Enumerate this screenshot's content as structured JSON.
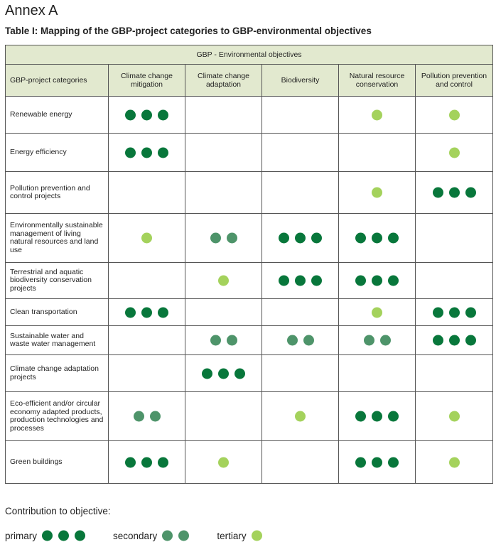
{
  "header": {
    "title": "Annex A",
    "subtitle": "Table I: Mapping of the GBP-project categories to GBP-environmental objectives"
  },
  "table": {
    "group_header": "GBP - Environmental objectives",
    "columns": [
      "GBP-project categories",
      "Climate change mitigation",
      "Climate change adaptation",
      "Biodiversity",
      "Natural resource conservation",
      "Pollution prevention and control"
    ],
    "rows": [
      {
        "category": "Renewable energy",
        "levels": [
          3,
          null,
          null,
          1,
          1
        ]
      },
      {
        "category": "Energy efficiency",
        "levels": [
          3,
          null,
          null,
          null,
          1
        ]
      },
      {
        "category": "Pollution prevention and control projects",
        "levels": [
          null,
          null,
          null,
          1,
          3
        ]
      },
      {
        "category": "Environmentally sustainable management of living natural resources and land use",
        "levels": [
          1,
          2,
          3,
          3,
          null
        ]
      },
      {
        "category": "Terrestrial and aquatic biodiversity conservation projects",
        "levels": [
          null,
          1,
          3,
          3,
          null
        ]
      },
      {
        "category": "Clean transportation",
        "levels": [
          3,
          null,
          null,
          1,
          3
        ]
      },
      {
        "category": "Sustainable water and waste water management",
        "levels": [
          null,
          2,
          2,
          2,
          3
        ]
      },
      {
        "category": "Climate change adaptation projects",
        "levels": [
          null,
          3,
          null,
          null,
          null
        ]
      },
      {
        "category": "Eco-efficient and/or circular economy adapted products, production technologies and processes",
        "levels": [
          2,
          null,
          1,
          3,
          1
        ]
      },
      {
        "category": "Green buildings",
        "levels": [
          3,
          1,
          null,
          3,
          1
        ]
      }
    ]
  },
  "legend": {
    "title": "Contribution to objective:",
    "items": [
      {
        "label": "primary",
        "level": 3,
        "color": "#08773b"
      },
      {
        "label": "secondary",
        "level": 2,
        "color": "#4e946a"
      },
      {
        "label": "tertiary",
        "level": 1,
        "color": "#a4d25c"
      }
    ]
  }
}
